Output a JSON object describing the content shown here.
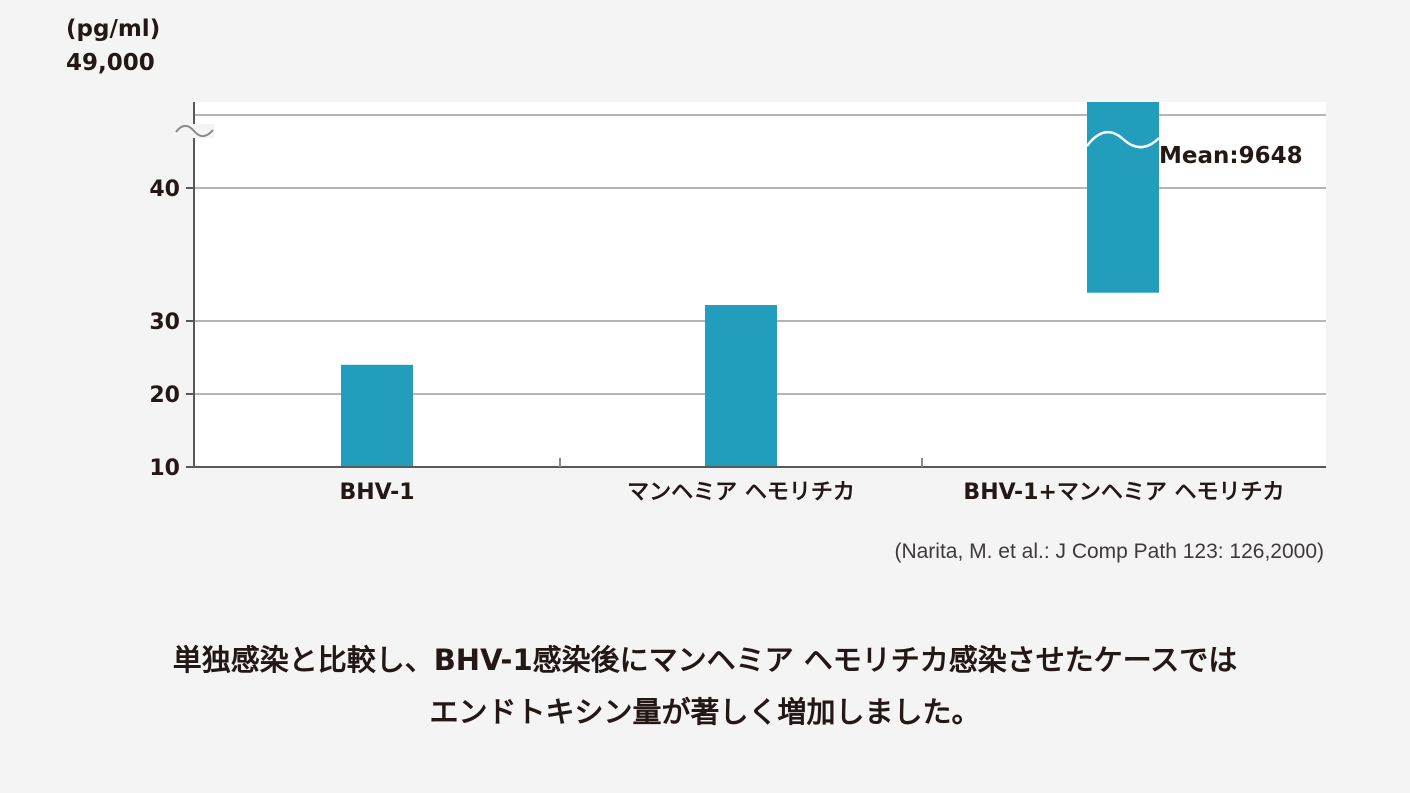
{
  "chart_data": {
    "type": "bar",
    "unit_label": "(pg/ml)",
    "axis_break_label": "49,000",
    "categories": [
      "BHV-1",
      "マンヘミア ヘモリチカ",
      "BHV-1+マンヘミア ヘモリチカ"
    ],
    "series": [
      {
        "values": [
          {
            "low": 10,
            "high": 24
          },
          {
            "low": 10,
            "high": 31.2
          },
          {
            "low": 31,
            "high": 9648
          }
        ]
      }
    ],
    "yticks": [
      "10",
      "20",
      "30",
      "40"
    ],
    "axis_break": true,
    "annotations": [
      {
        "category_index": 2,
        "text": "Mean:9648"
      }
    ],
    "grid": true,
    "bar_color": "#229dbc"
  },
  "source": "(Narita, M. et al.: J Comp Path 123: 126,2000)",
  "caption": {
    "line1": "単独感染と比較し、BHV-1感染後にマンヘミア ヘモリチカ感染させたケースでは",
    "line2": "エンドトキシン量が著しく増加しました。"
  }
}
